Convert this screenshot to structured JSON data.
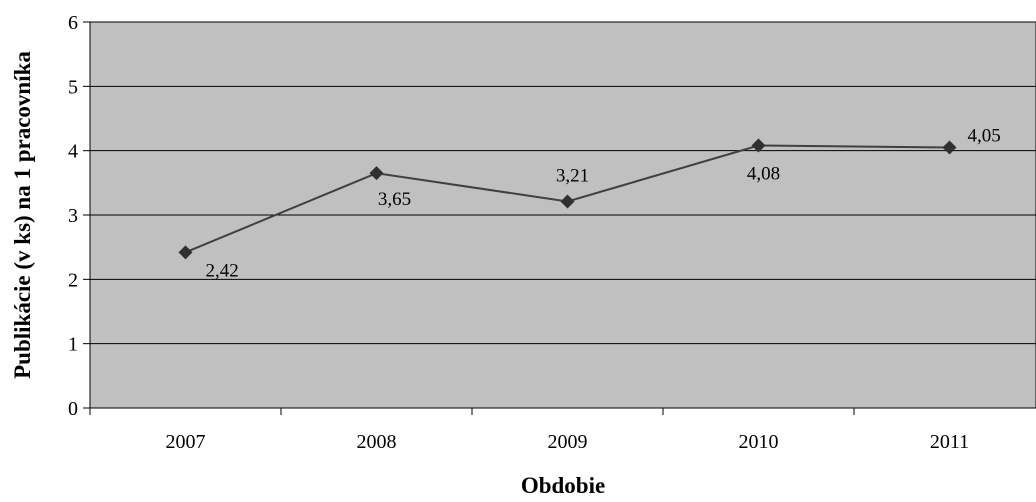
{
  "chart_data": {
    "type": "line",
    "title": "",
    "xlabel": "Obdobie",
    "ylabel": "Publikácie (v ks) na 1 pracovníka",
    "categories": [
      "2007",
      "2008",
      "2009",
      "2010",
      "2011"
    ],
    "series": [
      {
        "values": [
          2.42,
          3.65,
          3.21,
          4.08,
          4.05
        ],
        "labels": [
          "2,42",
          "3,65",
          "3,21",
          "4,08",
          "4,05"
        ]
      }
    ],
    "ylim": [
      0,
      6
    ],
    "yticks": [
      "0",
      "1",
      "2",
      "3",
      "4",
      "5",
      "6"
    ],
    "grid": true,
    "legend": "none",
    "colors": {
      "plot_background": "#c0c0c0",
      "line": "#404040",
      "marker": "#303030",
      "grid": "#000000"
    }
  }
}
